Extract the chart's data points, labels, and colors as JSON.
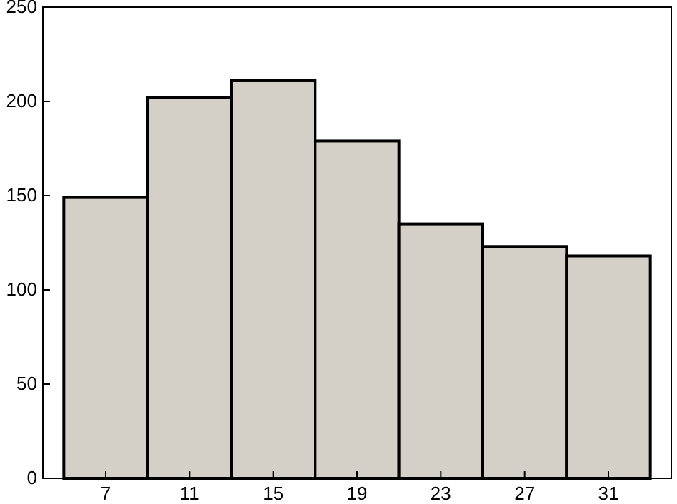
{
  "chart_data": {
    "type": "histogram",
    "bins": [
      5,
      9,
      13,
      17,
      21,
      25,
      29,
      33
    ],
    "values": [
      149,
      202,
      211,
      179,
      135,
      123,
      118
    ],
    "color": "#d4d0c8",
    "xlim": [
      4,
      34
    ],
    "ylim": [
      0,
      250
    ],
    "xticks": [
      7,
      11,
      15,
      19,
      23,
      27,
      31
    ],
    "yticks": [
      0,
      50,
      100,
      150,
      200,
      250
    ],
    "grid": false
  }
}
